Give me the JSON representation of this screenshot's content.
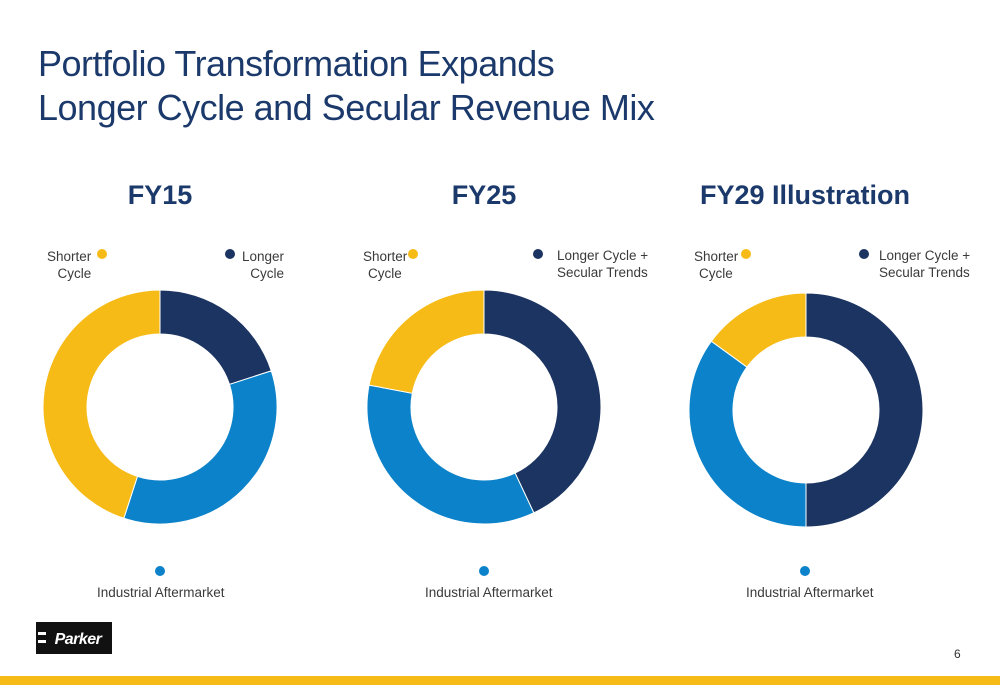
{
  "title_lines": [
    "Portfolio Transformation Expands",
    "Longer Cycle and Secular Revenue Mix"
  ],
  "colors": {
    "navy": "#1b3461",
    "blue": "#0b82c9",
    "yellow": "#f6bb17",
    "title": "#1b3a6b"
  },
  "chart_data": [
    {
      "type": "pie",
      "title": "FY15",
      "donut": true,
      "slices": [
        {
          "label": "Longer Cycle",
          "value": 20,
          "color": "#1b3461"
        },
        {
          "label": "Industrial Aftermarket",
          "value": 35,
          "color": "#0b82c9"
        },
        {
          "label": "Shorter Cycle",
          "value": 45,
          "color": "#f6bb17"
        }
      ],
      "labels": {
        "shorter": [
          "Shorter",
          "Cycle"
        ],
        "longer": [
          "Longer",
          "Cycle"
        ],
        "aftermarket": "Industrial Aftermarket"
      }
    },
    {
      "type": "pie",
      "title": "FY25",
      "donut": true,
      "slices": [
        {
          "label": "Longer Cycle + Secular Trends",
          "value": 43,
          "color": "#1b3461"
        },
        {
          "label": "Industrial Aftermarket",
          "value": 35,
          "color": "#0b82c9"
        },
        {
          "label": "Shorter Cycle",
          "value": 22,
          "color": "#f6bb17"
        }
      ],
      "labels": {
        "shorter": [
          "Shorter",
          "Cycle"
        ],
        "longer": [
          "Longer Cycle +",
          "Secular Trends"
        ],
        "aftermarket": "Industrial Aftermarket"
      }
    },
    {
      "type": "pie",
      "title": "FY29 Illustration",
      "donut": true,
      "slices": [
        {
          "label": "Longer Cycle + Secular Trends",
          "value": 50,
          "color": "#1b3461"
        },
        {
          "label": "Industrial Aftermarket",
          "value": 35,
          "color": "#0b82c9"
        },
        {
          "label": "Shorter Cycle",
          "value": 15,
          "color": "#f6bb17"
        }
      ],
      "labels": {
        "shorter": [
          "Shorter",
          "Cycle"
        ],
        "longer": [
          "Longer Cycle +",
          "Secular Trends"
        ],
        "aftermarket": "Industrial Aftermarket"
      }
    }
  ],
  "logo_text": "Parker",
  "page_number": "6"
}
